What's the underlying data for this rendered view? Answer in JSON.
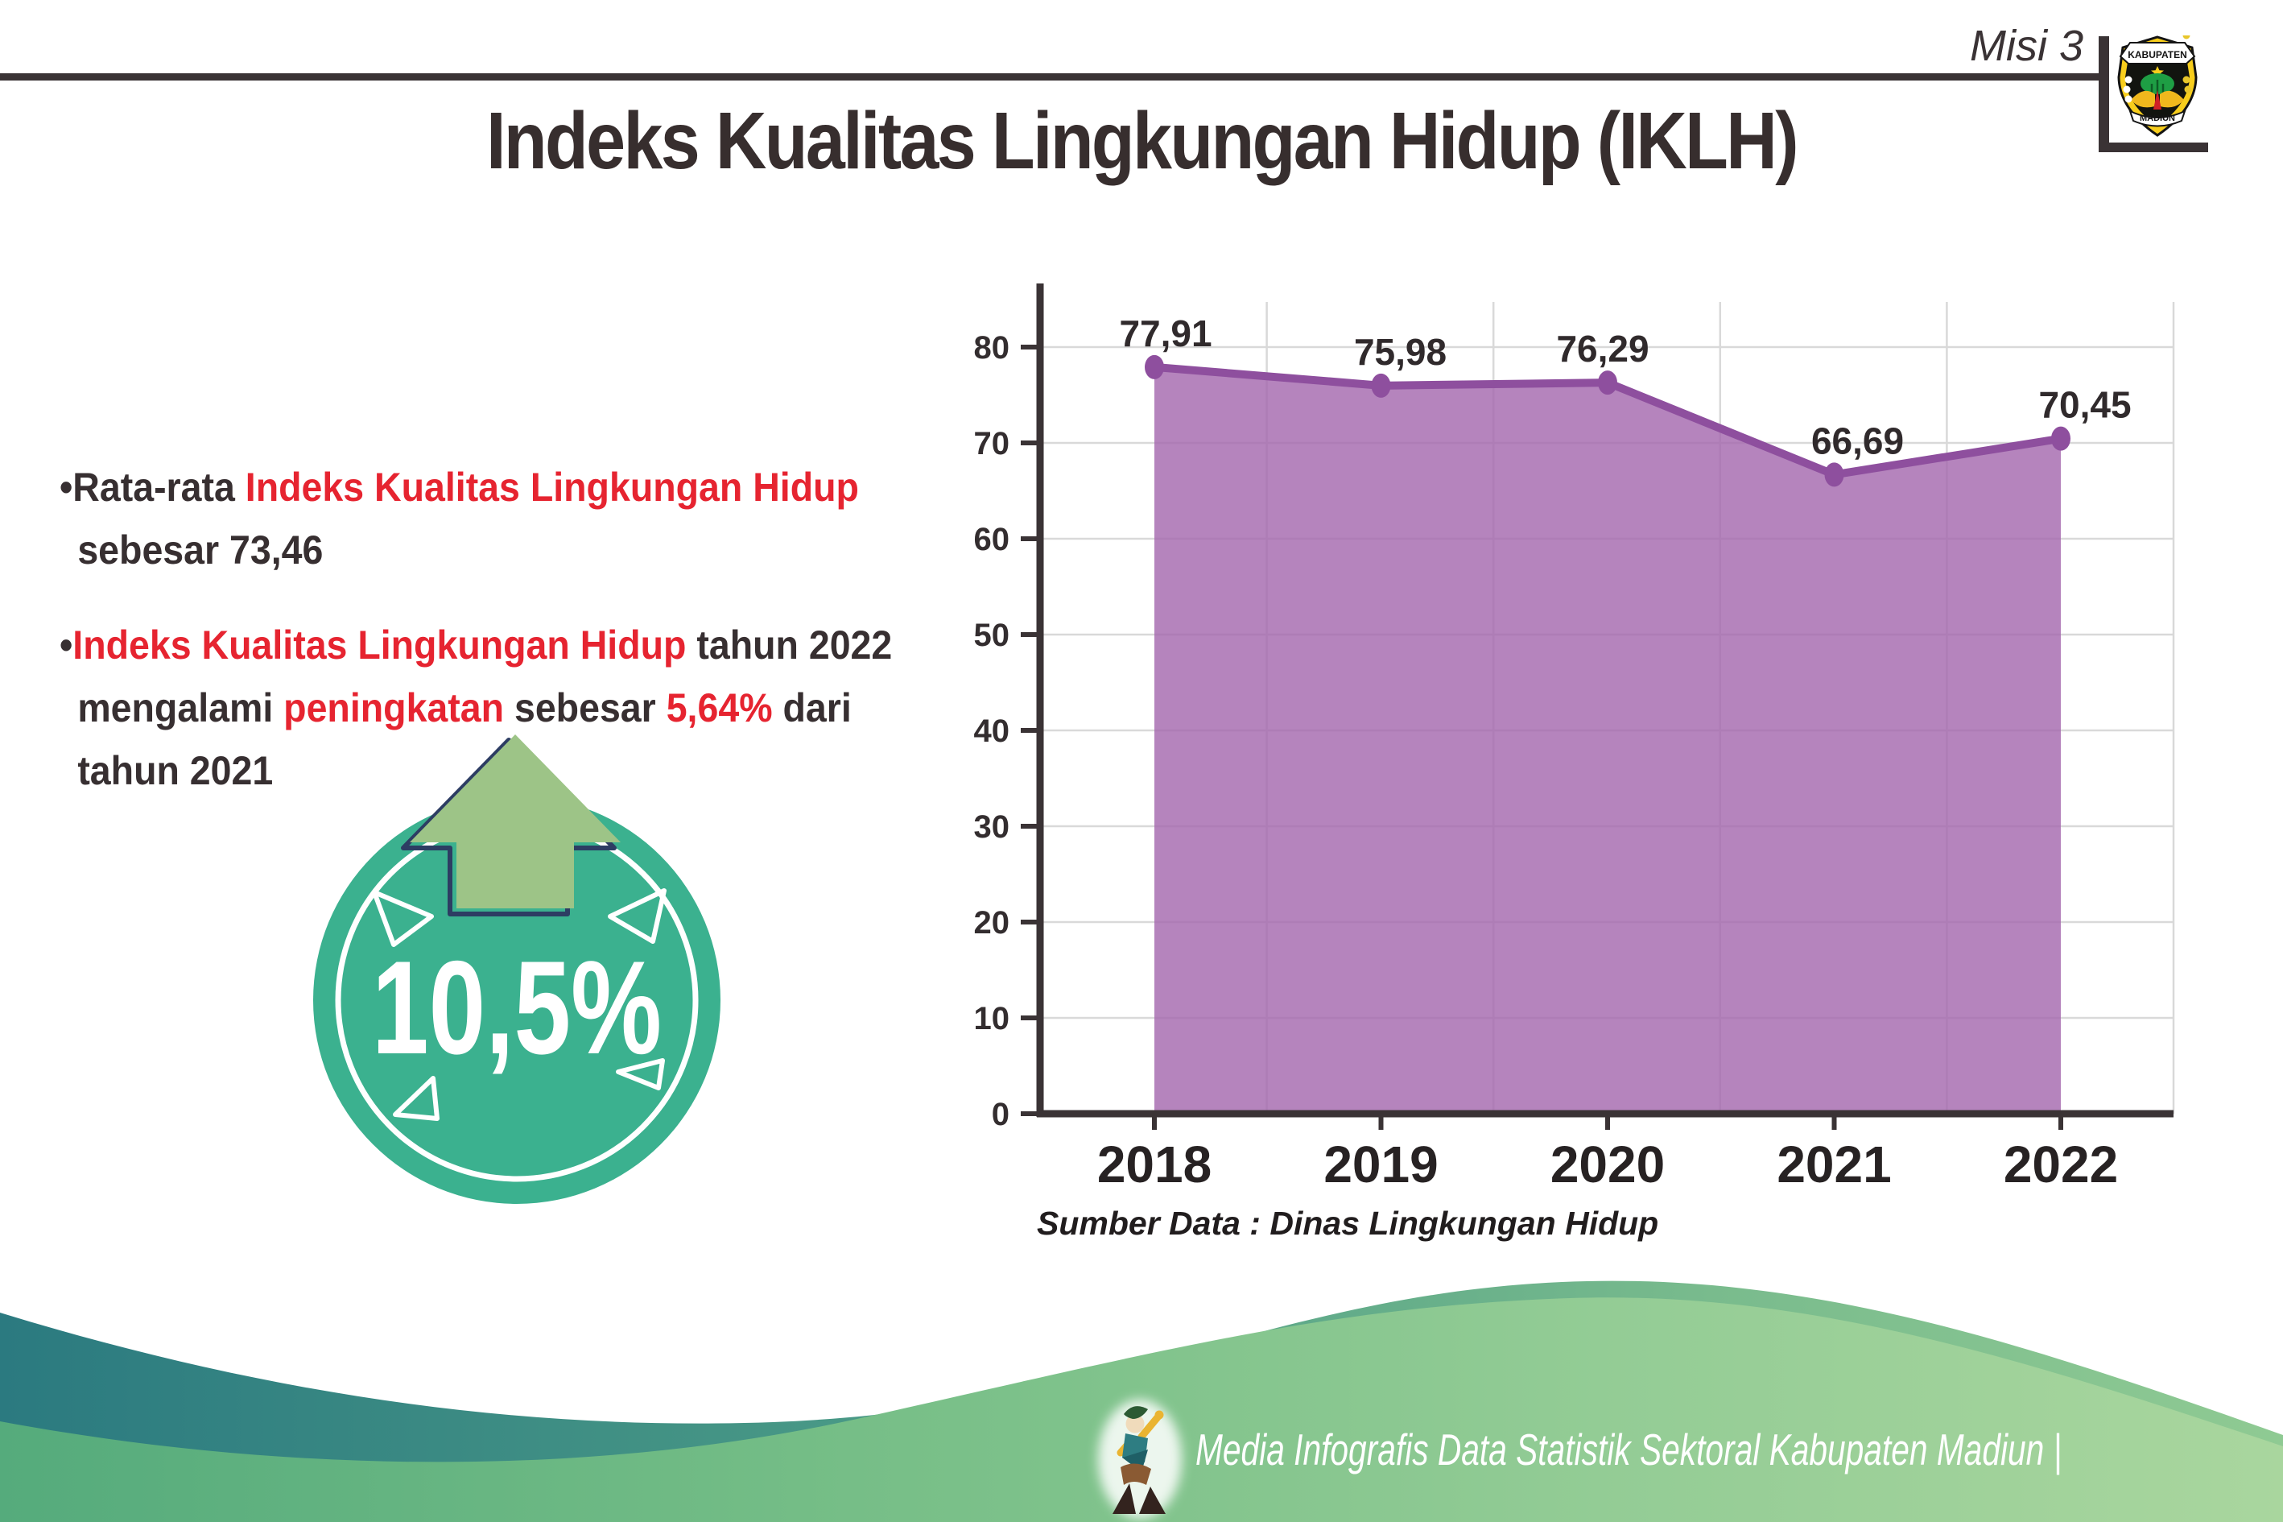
{
  "header": {
    "misi_label": "Misi 3",
    "title": "Indeks Kualitas Lingkungan Hidup (IKLH)",
    "logo": {
      "top_text": "KABUPATEN",
      "bottom_text": "MADIUN"
    }
  },
  "bullets": [
    {
      "lines": [
        [
          {
            "text": "•Rata-rata ",
            "color": "dark_text"
          },
          {
            "text": "Indeks Kualitas Lingkungan Hidup",
            "color": "red_text"
          }
        ],
        [
          {
            "text": "sebesar 73,46",
            "color": "dark_text"
          }
        ]
      ]
    },
    {
      "lines": [
        [
          {
            "text": "•",
            "color": "dark_text"
          },
          {
            "text": "Indeks Kualitas Lingkungan Hidup",
            "color": "red_text"
          },
          {
            "text": " tahun 2022",
            "color": "dark_text"
          }
        ],
        [
          {
            "text": "mengalami ",
            "color": "dark_text"
          },
          {
            "text": "peningkatan",
            "color": "red_text"
          },
          {
            "text": " sebesar ",
            "color": "dark_text"
          },
          {
            "text": "5,64%",
            "color": "red_text"
          },
          {
            "text": " dari",
            "color": "dark_text"
          }
        ],
        [
          {
            "text": "tahun 2021",
            "color": "dark_text"
          }
        ]
      ]
    }
  ],
  "badge": {
    "value": "10,5%"
  },
  "chart_data": {
    "type": "area",
    "title": "",
    "xlabel": "",
    "ylabel": "",
    "categories": [
      "2018",
      "2019",
      "2020",
      "2021",
      "2022"
    ],
    "values": [
      77.91,
      75.98,
      76.29,
      66.69,
      70.45
    ],
    "value_labels": [
      "77,91",
      "75,98",
      "76,29",
      "66,69",
      "70,45"
    ],
    "ylim": [
      0,
      80
    ],
    "ytick_step": 10,
    "ytick_labels": [
      "0",
      "10",
      "20",
      "30",
      "40",
      "50",
      "60",
      "70",
      "80"
    ],
    "grid": true,
    "legend": "none",
    "area_color": "rgba(163,101,172,0.8)",
    "line_color": "#8e4f9e",
    "marker_color": "#8e4f9e"
  },
  "source_note": "Sumber Data : Dinas Lingkungan Hidup",
  "footer": {
    "caption": "Media Infografis Data Statistik Sektoral Kabupaten Madiun |"
  },
  "colors": {
    "red_text": "#e62430",
    "dark_text": "#372f31",
    "axis": "#3a3335",
    "grid": "#d9d9d9",
    "tick_label": "#332d2f",
    "data_label": "#302a2c",
    "badge_teal": "#3bb18f",
    "arrow_green": "#9dc487",
    "arrow_outline": "#2d3d63",
    "footer_teal_dark": "#2b7a80",
    "footer_green_light": "#a9d69e"
  }
}
